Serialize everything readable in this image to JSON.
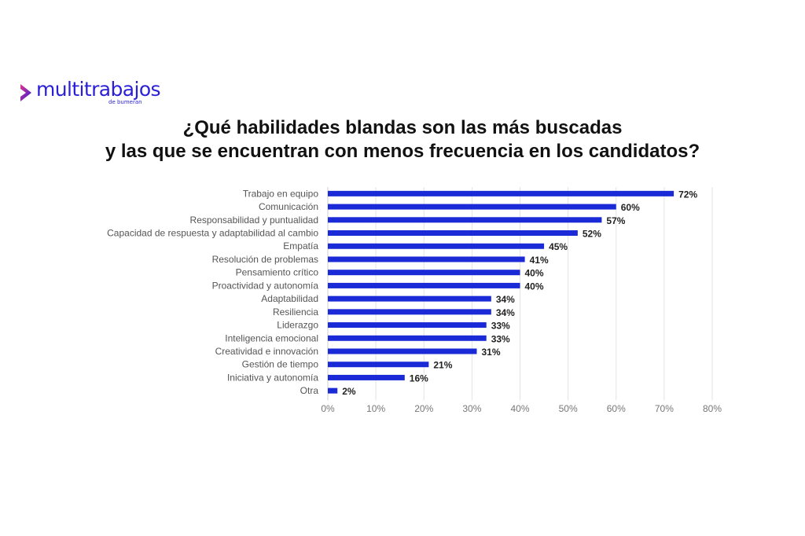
{
  "logo": {
    "brand": "multitrabajos",
    "sub": "de bumeran"
  },
  "title": {
    "line1": "¿Qué habilidades blandas son las más buscadas",
    "line2": "y las que se encuentran con menos frecuencia en los candidatos?"
  },
  "colors": {
    "bar": "#1a2ad6",
    "brand": "#2a1fd6",
    "grid": "#e3e3e3"
  },
  "chart_data": {
    "type": "bar",
    "orientation": "horizontal",
    "title": "¿Qué habilidades blandas son las más buscadas y las que se encuentran con menos frecuencia en los candidatos?",
    "categories": [
      "Trabajo en equipo",
      "Comunicación",
      "Responsabilidad y puntualidad",
      "Capacidad de respuesta y adaptabilidad al cambio",
      "Empatía",
      "Resolución de problemas",
      "Pensamiento crítico",
      "Proactividad y autonomía",
      "Adaptabilidad",
      "Resiliencia",
      "Liderazgo",
      "Inteligencia emocional",
      "Creatividad e innovación",
      "Gestión de tiempo",
      "Iniciativa y autonomía",
      "Otra"
    ],
    "values": [
      72,
      60,
      57,
      52,
      45,
      41,
      40,
      40,
      34,
      34,
      33,
      33,
      31,
      21,
      16,
      2
    ],
    "value_labels": [
      "72%",
      "60%",
      "57%",
      "52%",
      "45%",
      "41%",
      "40%",
      "40%",
      "34%",
      "34%",
      "33%",
      "33%",
      "31%",
      "21%",
      "16%",
      "2%"
    ],
    "xlim": [
      0,
      80
    ],
    "xticks": [
      0,
      10,
      20,
      30,
      40,
      50,
      60,
      70,
      80
    ],
    "xtick_labels": [
      "0%",
      "10%",
      "20%",
      "30%",
      "40%",
      "50%",
      "60%",
      "70%",
      "80%"
    ],
    "xlabel": "",
    "ylabel": "",
    "grid": true,
    "legend": "none"
  }
}
